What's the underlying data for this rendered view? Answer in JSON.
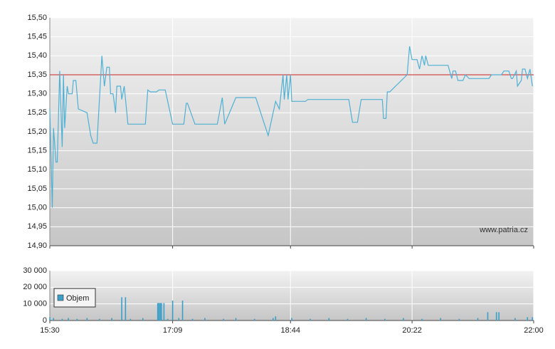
{
  "chart_data": [
    {
      "type": "line",
      "watermark": "www.patria.cz",
      "color": "#4fb0d4",
      "reference_line": {
        "value": 15.35,
        "color": "#cc2222"
      },
      "xlim": [
        "15:30",
        "22:00"
      ],
      "ylim": [
        14.9,
        15.5
      ],
      "yticks": [
        {
          "value": 14.9,
          "label": "14,90"
        },
        {
          "value": 14.95,
          "label": "14,95"
        },
        {
          "value": 15.0,
          "label": "15,00"
        },
        {
          "value": 15.05,
          "label": "15,05"
        },
        {
          "value": 15.1,
          "label": "15,10"
        },
        {
          "value": 15.15,
          "label": "15,15"
        },
        {
          "value": 15.2,
          "label": "15,20"
        },
        {
          "value": 15.25,
          "label": "15,25"
        },
        {
          "value": 15.3,
          "label": "15,30"
        },
        {
          "value": 15.35,
          "label": "15,35"
        },
        {
          "value": 15.4,
          "label": "15,40"
        },
        {
          "value": 15.45,
          "label": "15,45"
        },
        {
          "value": 15.5,
          "label": "15,50"
        }
      ],
      "grid": true,
      "x": [
        "15:30",
        "15:32",
        "15:33",
        "15:35",
        "15:36",
        "15:38",
        "15:40",
        "15:41",
        "15:42",
        "15:44",
        "15:45",
        "15:48",
        "15:49",
        "15:51",
        "15:53",
        "16:00",
        "16:03",
        "16:05",
        "16:08",
        "16:12",
        "16:14",
        "16:16",
        "16:18",
        "16:19",
        "16:21",
        "16:23",
        "16:24",
        "16:27",
        "16:28",
        "16:30",
        "16:33",
        "16:47",
        "16:49",
        "16:51",
        "16:56",
        "16:58",
        "17:03",
        "17:09",
        "17:18",
        "17:20",
        "17:21",
        "17:27",
        "17:45",
        "17:49",
        "17:51",
        "18:00",
        "18:16",
        "18:26",
        "18:32",
        "18:35",
        "18:38",
        "18:39",
        "18:41",
        "18:42",
        "18:44",
        "18:45",
        "18:56",
        "18:58",
        "19:31",
        "19:34",
        "19:38",
        "19:41",
        "19:58",
        "19:59",
        "20:01",
        "20:02",
        "20:04",
        "20:18",
        "20:20",
        "20:22",
        "20:26",
        "20:28",
        "20:30",
        "20:32",
        "20:33",
        "20:35",
        "20:51",
        "20:54",
        "20:55",
        "20:57",
        "20:59",
        "21:03",
        "21:05",
        "21:08",
        "21:24",
        "21:26",
        "21:34",
        "21:36",
        "21:40",
        "21:42",
        "21:43",
        "21:46",
        "21:47",
        "21:50",
        "21:51",
        "21:53",
        "21:55",
        "21:57",
        "21:59"
      ],
      "values": [
        15.26,
        15.0,
        15.21,
        15.12,
        15.12,
        15.36,
        15.16,
        15.35,
        15.21,
        15.32,
        15.3,
        15.3,
        15.335,
        15.335,
        15.26,
        15.25,
        15.19,
        15.17,
        15.17,
        15.4,
        15.32,
        15.37,
        15.37,
        15.3,
        15.3,
        15.25,
        15.32,
        15.32,
        15.285,
        15.32,
        15.22,
        15.22,
        15.31,
        15.305,
        15.305,
        15.31,
        15.31,
        15.22,
        15.22,
        15.275,
        15.275,
        15.22,
        15.22,
        15.29,
        15.22,
        15.29,
        15.29,
        15.19,
        15.28,
        15.26,
        15.35,
        15.285,
        15.35,
        15.285,
        15.35,
        15.28,
        15.28,
        15.285,
        15.285,
        15.225,
        15.225,
        15.285,
        15.285,
        15.235,
        15.235,
        15.305,
        15.305,
        15.35,
        15.425,
        15.39,
        15.39,
        15.365,
        15.4,
        15.375,
        15.4,
        15.375,
        15.375,
        15.34,
        15.36,
        15.36,
        15.335,
        15.335,
        15.35,
        15.34,
        15.34,
        15.35,
        15.35,
        15.36,
        15.36,
        15.34,
        15.34,
        15.36,
        15.32,
        15.335,
        15.365,
        15.365,
        15.34,
        15.365,
        15.32
      ]
    },
    {
      "type": "bar",
      "xlim": [
        "15:30",
        "22:00"
      ],
      "xticks": [
        "15:30",
        "17:09",
        "18:44",
        "20:22",
        "22:00"
      ],
      "ylim": [
        0,
        30000
      ],
      "yticks": [
        {
          "value": 0,
          "label": "0"
        },
        {
          "value": 10000,
          "label": "10 000"
        },
        {
          "value": 20000,
          "label": "20 000"
        },
        {
          "value": 30000,
          "label": "30 000"
        }
      ],
      "grid": true,
      "legend": "upper-left",
      "x": [
        "15:30",
        "15:33",
        "15:40",
        "15:45",
        "15:52",
        "16:00",
        "16:10",
        "16:20",
        "16:28",
        "16:31",
        "16:35",
        "16:45",
        "16:57",
        "16:58",
        "16:59",
        "17:00",
        "17:02",
        "17:05",
        "17:09",
        "17:14",
        "17:17",
        "17:25",
        "17:35",
        "17:50",
        "18:00",
        "18:15",
        "18:30",
        "18:32",
        "18:45",
        "19:00",
        "19:15",
        "19:30",
        "19:45",
        "20:00",
        "20:15",
        "20:30",
        "20:45",
        "21:00",
        "21:15",
        "21:23",
        "21:30",
        "21:32",
        "21:45",
        "21:55",
        "21:59"
      ],
      "series": [
        {
          "name": "Objem",
          "color": "#3a9fc8",
          "values": [
            2000,
            1500,
            1000,
            1500,
            1000,
            1500,
            1000,
            1500,
            14000,
            14000,
            1000,
            1500,
            10500,
            10500,
            10500,
            10500,
            10500,
            1000,
            12000,
            1500,
            12000,
            1000,
            1500,
            1000,
            1500,
            1000,
            1500,
            2500,
            1500,
            1000,
            1500,
            1000,
            1500,
            1000,
            1500,
            1000,
            1500,
            1000,
            1500,
            5000,
            5000,
            5000,
            1500,
            2000,
            2000
          ]
        }
      ]
    }
  ]
}
